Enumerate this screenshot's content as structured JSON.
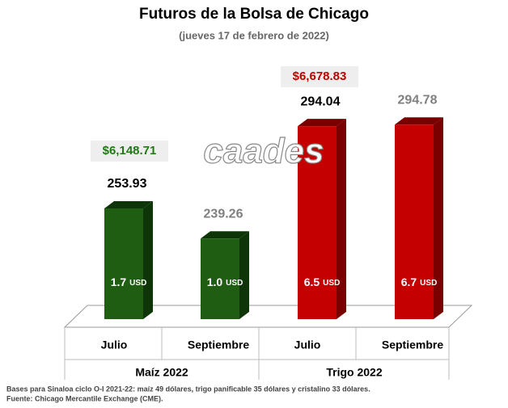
{
  "chart_data": {
    "type": "bar3d",
    "title": "Futuros de la Bolsa de Chicago",
    "subtitle": "(jueves 17 de febrero de 2022)",
    "watermark": "caades",
    "categories": [
      "Julio",
      "Septiembre",
      "Julio",
      "Septiembre"
    ],
    "values": [
      253.93,
      239.26,
      294.04,
      294.78
    ],
    "colors": [
      "#1f5e12",
      "#1f5e12",
      "#c40000",
      "#c40000"
    ],
    "side_colors": [
      "#0e3507",
      "#0e3507",
      "#7a0000",
      "#7a0000"
    ],
    "label_colors": [
      "#000000",
      "#808080",
      "#000000",
      "#808080"
    ],
    "changes": [
      {
        "value": 1.7,
        "label": "1.7"
      },
      {
        "value": 1.0,
        "label": "1.0"
      },
      {
        "value": 6.5,
        "label": "6.5"
      },
      {
        "value": 6.7,
        "label": "6.7"
      }
    ],
    "change_unit": "USD",
    "groups": [
      {
        "name": "Maíz 2022",
        "price": 6148.71,
        "price_label": "$6,148.71",
        "price_color": "#1f7a12"
      },
      {
        "name": "Trigo 2022",
        "price": 6678.83,
        "price_label": "$6,678.83",
        "price_color": "#c00000"
      }
    ],
    "ylim": [
      200,
      300
    ],
    "footnotes": [
      "Bases para Sinaloa ciclo O-I 2021-22: maíz 49 dólares, trigo panificable 35 dólares y cristalino 33 dólares.",
      "Fuente: Chicago Mercantile Exchange (CME)."
    ]
  }
}
